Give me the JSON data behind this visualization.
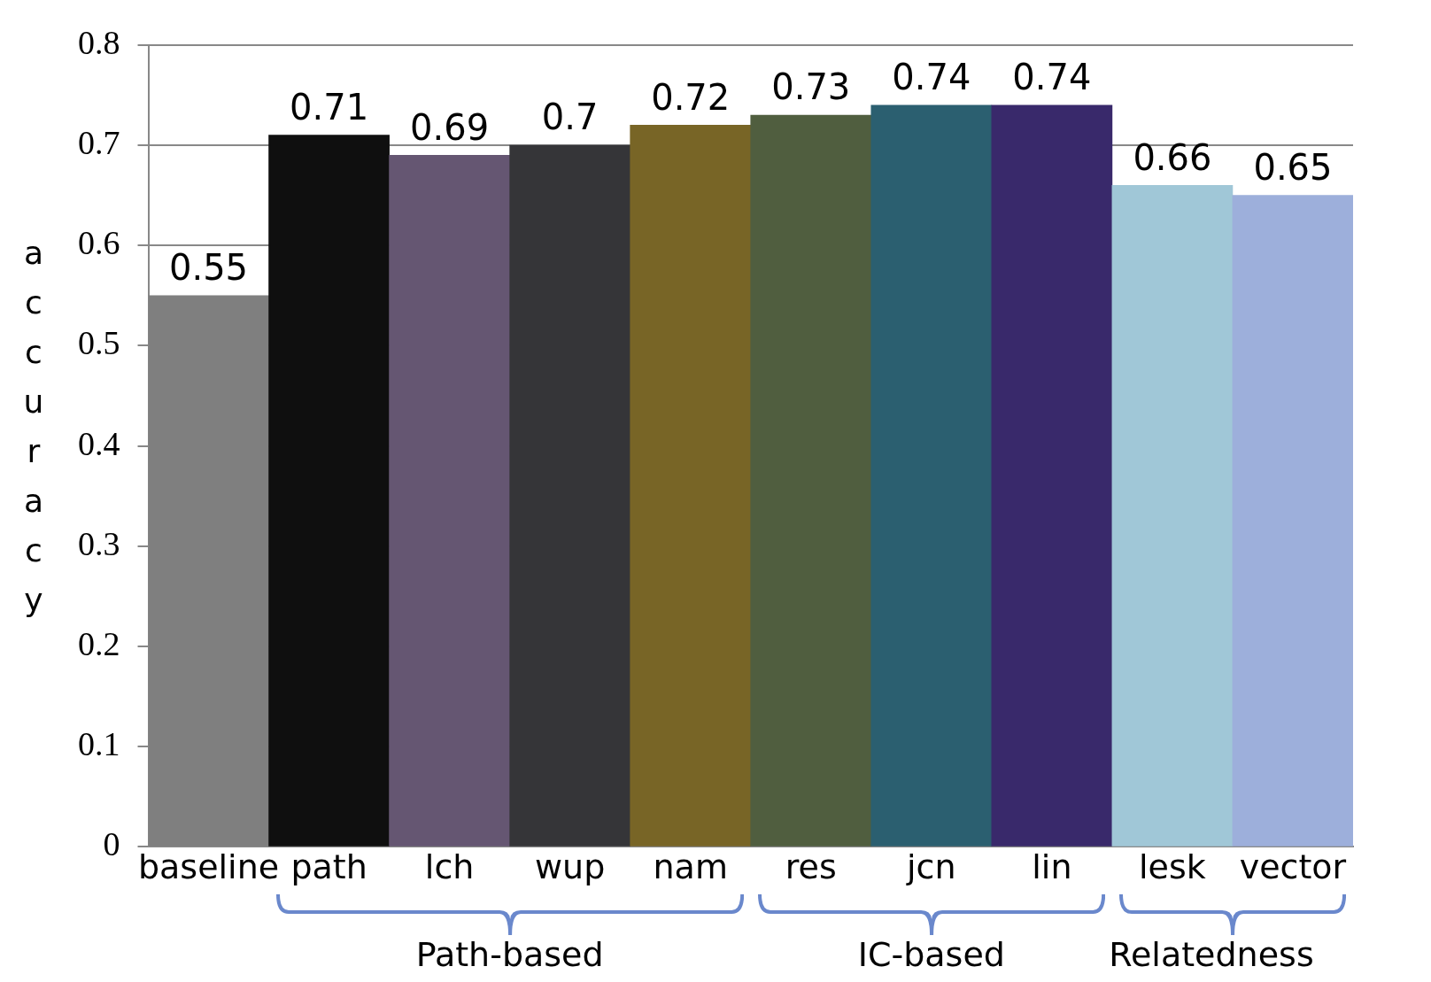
{
  "chart_data": {
    "type": "bar",
    "ylabel": "accuracy",
    "categories": [
      "baseline",
      "path",
      "lch",
      "wup",
      "nam",
      "res",
      "jcn",
      "lin",
      "lesk",
      "vector"
    ],
    "values": [
      0.55,
      0.71,
      0.69,
      0.7,
      0.72,
      0.73,
      0.74,
      0.74,
      0.66,
      0.65
    ],
    "colors": [
      "#7f7f7f",
      "#0f0f0f",
      "#655672",
      "#353538",
      "#786526",
      "#505e3f",
      "#2b5f70",
      "#39296b",
      "#a0c7d7",
      "#9dafdb"
    ],
    "ylim": [
      0,
      0.8
    ],
    "yticks": [
      0,
      0.1,
      0.2,
      0.3,
      0.4,
      0.5,
      0.6,
      0.7,
      0.8
    ],
    "grid": "y",
    "data_labels": true,
    "legend": false,
    "annotations": [
      "Path-based",
      "IC-based",
      "Relatedness"
    ]
  }
}
